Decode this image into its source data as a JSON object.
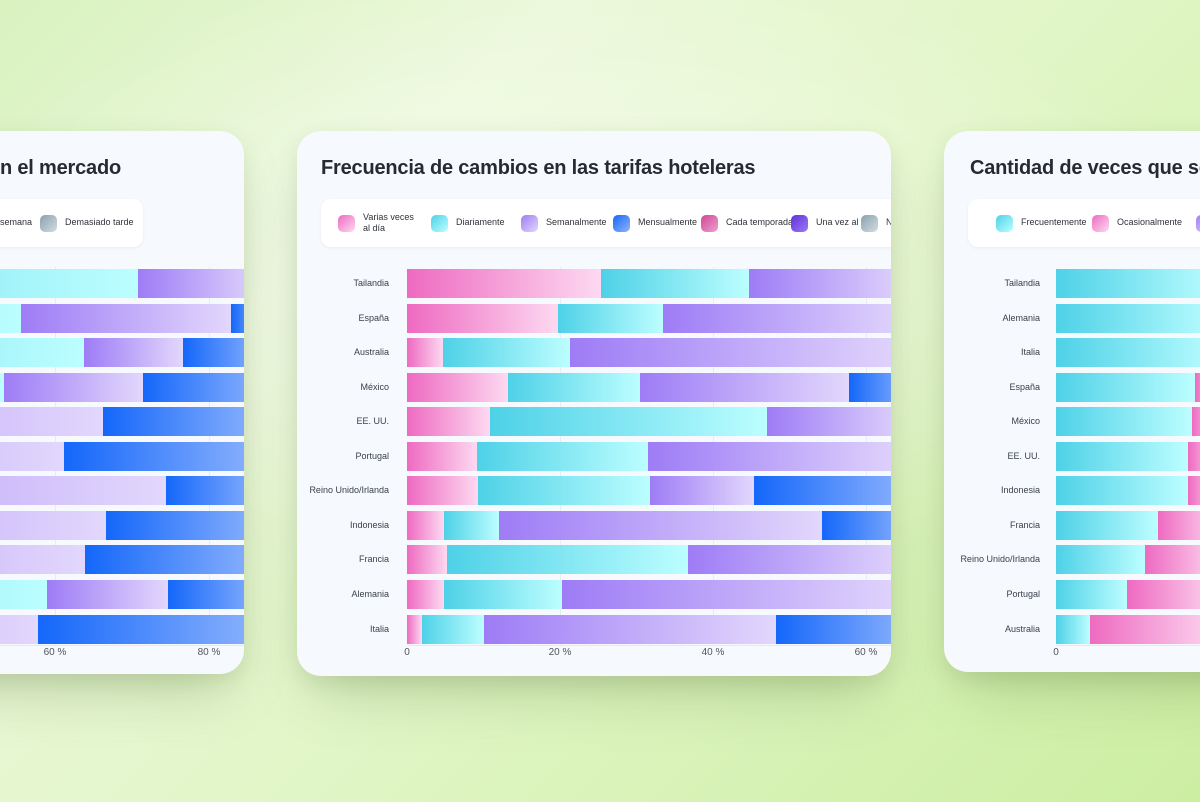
{
  "colors": {
    "pink": [
      "#ee6ac1",
      "#fdd9f1"
    ],
    "cyan": [
      "#4ed1e7",
      "#bcfeff"
    ],
    "purple": [
      "#9e7cf6",
      "#e2d7fc"
    ],
    "blue": [
      "#1467fa",
      "#8fb4fd"
    ],
    "magenta": [
      "#cf4798",
      "#eda0cd"
    ],
    "violet": [
      "#5f31dd",
      "#9b79f2"
    ],
    "gray": [
      "#8ba0ad",
      "#d2dde2"
    ],
    "card_bg": "#f6f9fd",
    "legend_bg": "#ffffff",
    "title_text": "#272a31"
  },
  "chart_data": [
    {
      "type": "stacked_bar_horizontal",
      "title": "n el mercado",
      "legend": [
        {
          "color": null,
          "label": "semana"
        },
        {
          "color": "gray",
          "label": "Demasiado tarde"
        }
      ],
      "x_axis": {
        "unit": "%",
        "ticks": [
          {
            "label": "60 %",
            "pct": 60
          },
          {
            "label": "80 %",
            "pct": 80
          }
        ],
        "visible_window_pct": [
          53,
          84.5
        ]
      },
      "categories": [],
      "rows": [
        {
          "category": "",
          "segments": [
            {
              "color": "cyan",
              "from_pct": null,
              "to_pct": 70.8
            },
            {
              "color": "purple",
              "from_pct": 70.8,
              "to_pct": null
            }
          ]
        },
        {
          "category": "",
          "segments": [
            {
              "color": "cyan",
              "from_pct": null,
              "to_pct": 55.6
            },
            {
              "color": "purple",
              "from_pct": 55.6,
              "to_pct": 82.9
            },
            {
              "color": "blue",
              "from_pct": 82.9,
              "to_pct": null
            }
          ]
        },
        {
          "category": "",
          "segments": [
            {
              "color": "cyan",
              "from_pct": null,
              "to_pct": 63.8
            },
            {
              "color": "purple",
              "from_pct": 63.8,
              "to_pct": 76.6
            },
            {
              "color": "blue",
              "from_pct": 76.6,
              "to_pct": null
            }
          ]
        },
        {
          "category": "",
          "segments": [
            {
              "color": "cyan",
              "from_pct": null,
              "to_pct": 53.4
            },
            {
              "color": "purple",
              "from_pct": 53.4,
              "to_pct": 71.4
            },
            {
              "color": "blue",
              "from_pct": 71.4,
              "to_pct": null
            }
          ]
        },
        {
          "category": "",
          "segments": [
            {
              "color": "purple",
              "from_pct": null,
              "to_pct": 66.2
            },
            {
              "color": "blue",
              "from_pct": 66.2,
              "to_pct": null
            }
          ]
        },
        {
          "category": "",
          "segments": [
            {
              "color": "purple",
              "from_pct": null,
              "to_pct": 61.2
            },
            {
              "color": "blue",
              "from_pct": 61.2,
              "to_pct": null
            }
          ]
        },
        {
          "category": "",
          "segments": [
            {
              "color": "purple",
              "from_pct": null,
              "to_pct": 74.4
            },
            {
              "color": "blue",
              "from_pct": 74.4,
              "to_pct": null
            }
          ]
        },
        {
          "category": "",
          "segments": [
            {
              "color": "purple",
              "from_pct": null,
              "to_pct": 66.6
            },
            {
              "color": "blue",
              "from_pct": 66.6,
              "to_pct": null
            }
          ]
        },
        {
          "category": "",
          "segments": [
            {
              "color": "purple",
              "from_pct": null,
              "to_pct": 63.9
            },
            {
              "color": "blue",
              "from_pct": 63.9,
              "to_pct": null
            }
          ]
        },
        {
          "category": "",
          "segments": [
            {
              "color": "cyan",
              "from_pct": null,
              "to_pct": 59.0
            },
            {
              "color": "purple",
              "from_pct": 59.0,
              "to_pct": 74.7
            },
            {
              "color": "blue",
              "from_pct": 74.7,
              "to_pct": null
            }
          ]
        },
        {
          "category": "",
          "segments": [
            {
              "color": "purple",
              "from_pct": null,
              "to_pct": 57.8
            },
            {
              "color": "blue",
              "from_pct": 57.8,
              "to_pct": null
            }
          ]
        }
      ]
    },
    {
      "type": "stacked_bar_horizontal",
      "title": "Frecuencia de cambios en las tarifas hoteleras",
      "legend": [
        {
          "color": "pink",
          "label": "Varias veces al día"
        },
        {
          "color": "cyan",
          "label": "Diariamente"
        },
        {
          "color": "purple",
          "label": "Semanalmente"
        },
        {
          "color": "blue",
          "label": "Mensualmente"
        },
        {
          "color": "magenta",
          "label": "Cada temporada"
        },
        {
          "color": "violet",
          "label": "Una vez al año"
        },
        {
          "color": "gray",
          "label": "Nunca"
        }
      ],
      "x_axis": {
        "unit": "%",
        "ticks": [
          {
            "label": "0",
            "pct": 0
          },
          {
            "label": "20 %",
            "pct": 20
          },
          {
            "label": "40 %",
            "pct": 40
          },
          {
            "label": "60 %",
            "pct": 60
          }
        ],
        "visible_window_pct": [
          0,
          63.4
        ]
      },
      "categories": [
        "Tailandia",
        "España",
        "Australia",
        "México",
        "EE. UU.",
        "Portugal",
        "Reino Unido/Irlanda",
        "Indonesia",
        "Francia",
        "Alemania",
        "Italia"
      ],
      "rows": [
        {
          "category": "Tailandia",
          "segments": [
            {
              "series": "Varias veces al día",
              "color": "pink",
              "from_pct": 0,
              "to_pct": 25.4
            },
            {
              "series": "Diariamente",
              "color": "cyan",
              "from_pct": 25.4,
              "to_pct": 44.7
            },
            {
              "series": "Semanalmente",
              "color": "purple",
              "from_pct": 44.7,
              "to_pct": null
            }
          ]
        },
        {
          "category": "España",
          "segments": [
            {
              "series": "Varias veces al día",
              "color": "pink",
              "from_pct": 0,
              "to_pct": 19.7
            },
            {
              "series": "Diariamente",
              "color": "cyan",
              "from_pct": 19.7,
              "to_pct": 33.4
            },
            {
              "series": "Semanalmente",
              "color": "purple",
              "from_pct": 33.4,
              "to_pct": null
            }
          ]
        },
        {
          "category": "Australia",
          "segments": [
            {
              "series": "Varias veces al día",
              "color": "pink",
              "from_pct": 0,
              "to_pct": 4.7
            },
            {
              "series": "Diariamente",
              "color": "cyan",
              "from_pct": 4.7,
              "to_pct": 21.3
            },
            {
              "series": "Semanalmente",
              "color": "purple",
              "from_pct": 21.3,
              "to_pct": null
            }
          ]
        },
        {
          "category": "México",
          "segments": [
            {
              "series": "Varias veces al día",
              "color": "pink",
              "from_pct": 0,
              "to_pct": 13.2
            },
            {
              "series": "Diariamente",
              "color": "cyan",
              "from_pct": 13.2,
              "to_pct": 30.5
            },
            {
              "series": "Semanalmente",
              "color": "purple",
              "from_pct": 30.5,
              "to_pct": 57.8
            },
            {
              "series": "Mensualmente",
              "color": "blue",
              "from_pct": 57.8,
              "to_pct": null
            }
          ]
        },
        {
          "category": "EE. UU.",
          "segments": [
            {
              "series": "Varias veces al día",
              "color": "pink",
              "from_pct": 0,
              "to_pct": 10.9
            },
            {
              "series": "Diariamente",
              "color": "cyan",
              "from_pct": 10.9,
              "to_pct": 47.1
            },
            {
              "series": "Semanalmente",
              "color": "purple",
              "from_pct": 47.1,
              "to_pct": null
            }
          ]
        },
        {
          "category": "Portugal",
          "segments": [
            {
              "series": "Varias veces al día",
              "color": "pink",
              "from_pct": 0,
              "to_pct": 9.2
            },
            {
              "series": "Diariamente",
              "color": "cyan",
              "from_pct": 9.2,
              "to_pct": 31.5
            },
            {
              "series": "Semanalmente",
              "color": "purple",
              "from_pct": 31.5,
              "to_pct": null
            }
          ]
        },
        {
          "category": "Reino Unido/Irlanda",
          "segments": [
            {
              "series": "Varias veces al día",
              "color": "pink",
              "from_pct": 0,
              "to_pct": 9.3
            },
            {
              "series": "Diariamente",
              "color": "cyan",
              "from_pct": 9.3,
              "to_pct": 31.8
            },
            {
              "series": "Semanalmente",
              "color": "purple",
              "from_pct": 31.8,
              "to_pct": 45.4
            },
            {
              "series": "Mensualmente",
              "color": "blue",
              "from_pct": 45.4,
              "to_pct": null
            }
          ]
        },
        {
          "category": "Indonesia",
          "segments": [
            {
              "series": "Varias veces al día",
              "color": "pink",
              "from_pct": 0,
              "to_pct": 4.9
            },
            {
              "series": "Diariamente",
              "color": "cyan",
              "from_pct": 4.9,
              "to_pct": 12.0
            },
            {
              "series": "Semanalmente",
              "color": "purple",
              "from_pct": 12.0,
              "to_pct": 54.2
            },
            {
              "series": "Mensualmente",
              "color": "blue",
              "from_pct": 54.2,
              "to_pct": null
            }
          ]
        },
        {
          "category": "Francia",
          "segments": [
            {
              "series": "Varias veces al día",
              "color": "pink",
              "from_pct": 0,
              "to_pct": 5.2
            },
            {
              "series": "Diariamente",
              "color": "cyan",
              "from_pct": 5.2,
              "to_pct": 36.7
            },
            {
              "series": "Semanalmente",
              "color": "purple",
              "from_pct": 36.7,
              "to_pct": null
            }
          ]
        },
        {
          "category": "Alemania",
          "segments": [
            {
              "series": "Varias veces al día",
              "color": "pink",
              "from_pct": 0,
              "to_pct": 4.9
            },
            {
              "series": "Diariamente",
              "color": "cyan",
              "from_pct": 4.9,
              "to_pct": 20.3
            },
            {
              "series": "Semanalmente",
              "color": "purple",
              "from_pct": 20.3,
              "to_pct": null
            }
          ]
        },
        {
          "category": "Italia",
          "segments": [
            {
              "series": "Varias veces al día",
              "color": "pink",
              "from_pct": 0,
              "to_pct": 1.9
            },
            {
              "series": "Diariamente",
              "color": "cyan",
              "from_pct": 1.9,
              "to_pct": 10.1
            },
            {
              "series": "Semanalmente",
              "color": "purple",
              "from_pct": 10.1,
              "to_pct": 48.2
            },
            {
              "series": "Mensualmente",
              "color": "blue",
              "from_pct": 48.2,
              "to_pct": null
            }
          ]
        }
      ]
    },
    {
      "type": "stacked_bar_horizontal",
      "title": "Cantidad de veces que se",
      "legend": [
        {
          "color": "cyan",
          "label": "Frecuentemente"
        },
        {
          "color": "pink",
          "label": "Ocasionalmente"
        },
        {
          "color": "purple",
          "label": ""
        }
      ],
      "x_axis": {
        "unit": "%",
        "ticks": [
          {
            "label": "0",
            "pct": 0
          }
        ],
        "visible_window_pct": [
          0,
          18.7
        ]
      },
      "categories": [
        "Tailandia",
        "Alemania",
        "Italia",
        "España",
        "México",
        "EE. UU.",
        "Indonesia",
        "Francia",
        "Reino Unido/Irlanda",
        "Portugal",
        "Australia"
      ],
      "rows": [
        {
          "category": "Tailandia",
          "segments": [
            {
              "series": "Frecuentemente",
              "color": "cyan",
              "from_pct": 0,
              "to_pct": null
            }
          ]
        },
        {
          "category": "Alemania",
          "segments": [
            {
              "series": "Frecuentemente",
              "color": "cyan",
              "from_pct": 0,
              "to_pct": null
            }
          ]
        },
        {
          "category": "Italia",
          "segments": [
            {
              "series": "Frecuentemente",
              "color": "cyan",
              "from_pct": 0,
              "to_pct": null
            }
          ]
        },
        {
          "category": "España",
          "segments": [
            {
              "series": "Frecuentemente",
              "color": "cyan",
              "from_pct": 0,
              "to_pct": 18.1
            },
            {
              "series": "Ocasionalmente",
              "color": "pink",
              "from_pct": 18.1,
              "to_pct": null
            }
          ]
        },
        {
          "category": "México",
          "segments": [
            {
              "series": "Frecuentemente",
              "color": "cyan",
              "from_pct": 0,
              "to_pct": 17.7
            },
            {
              "series": "Ocasionalmente",
              "color": "pink",
              "from_pct": 17.7,
              "to_pct": null
            }
          ]
        },
        {
          "category": "EE. UU.",
          "segments": [
            {
              "series": "Frecuentemente",
              "color": "cyan",
              "from_pct": 0,
              "to_pct": 17.1
            },
            {
              "series": "Ocasionalmente",
              "color": "pink",
              "from_pct": 17.1,
              "to_pct": null
            }
          ]
        },
        {
          "category": "Indonesia",
          "segments": [
            {
              "series": "Frecuentemente",
              "color": "cyan",
              "from_pct": 0,
              "to_pct": 17.1
            },
            {
              "series": "Ocasionalmente",
              "color": "pink",
              "from_pct": 17.1,
              "to_pct": null
            }
          ]
        },
        {
          "category": "Francia",
          "segments": [
            {
              "series": "Frecuentemente",
              "color": "cyan",
              "from_pct": 0,
              "to_pct": 13.2
            },
            {
              "series": "Ocasionalmente",
              "color": "pink",
              "from_pct": 13.2,
              "to_pct": null
            }
          ]
        },
        {
          "category": "Reino Unido/Irlanda",
          "segments": [
            {
              "series": "Frecuentemente",
              "color": "cyan",
              "from_pct": 0,
              "to_pct": 11.6
            },
            {
              "series": "Ocasionalmente",
              "color": "pink",
              "from_pct": 11.6,
              "to_pct": null
            }
          ]
        },
        {
          "category": "Portugal",
          "segments": [
            {
              "series": "Frecuentemente",
              "color": "cyan",
              "from_pct": 0,
              "to_pct": 9.2
            },
            {
              "series": "Ocasionalmente",
              "color": "pink",
              "from_pct": 9.2,
              "to_pct": null
            }
          ]
        },
        {
          "category": "Australia",
          "segments": [
            {
              "series": "Frecuentemente",
              "color": "cyan",
              "from_pct": 0,
              "to_pct": 4.4
            },
            {
              "series": "Ocasionalmente",
              "color": "pink",
              "from_pct": 4.4,
              "to_pct": null
            }
          ]
        }
      ]
    }
  ]
}
